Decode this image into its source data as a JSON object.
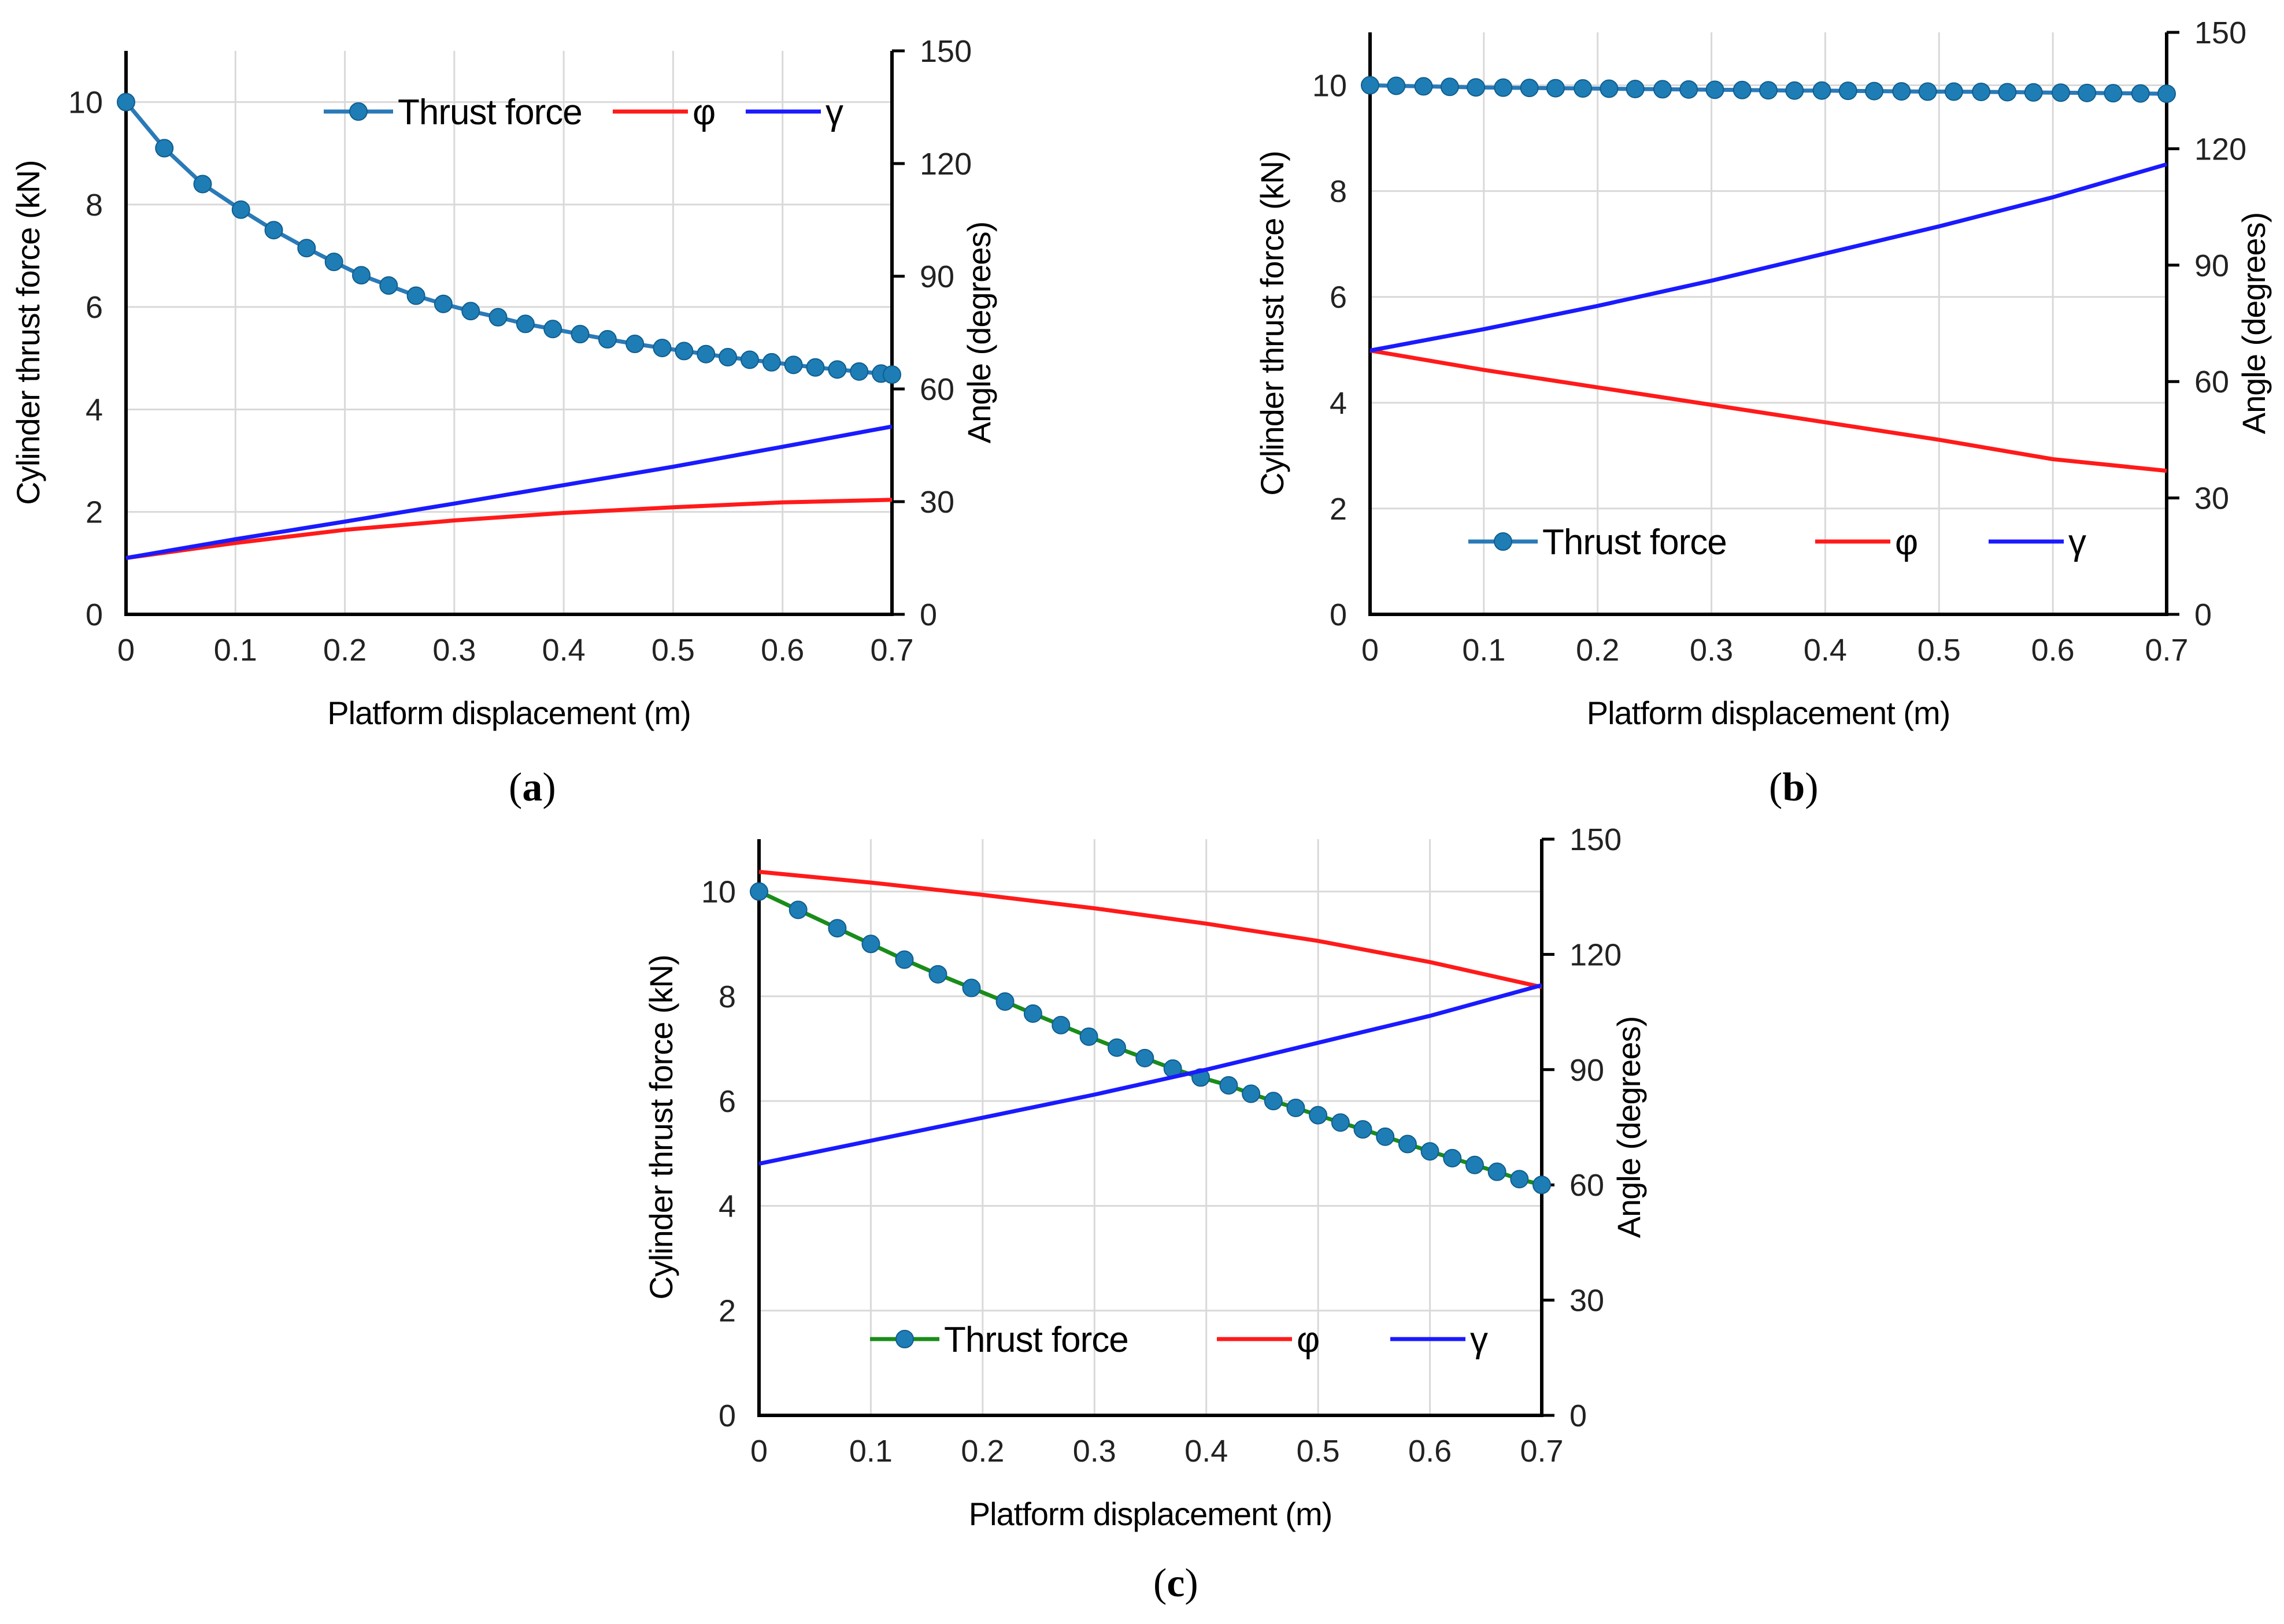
{
  "chart_data": [
    {
      "type": "line",
      "caption_letter": "a",
      "xlabel": "Platform displacement (m)",
      "ylabel": "Cylinder thrust force (kN)",
      "y2label": "Angle (degrees)",
      "xlim": [
        0,
        0.7
      ],
      "ylim": [
        0,
        11
      ],
      "y2lim": [
        0,
        150
      ],
      "x_ticks": [
        "0",
        "0.1",
        "0.2",
        "0.3",
        "0.4",
        "0.5",
        "0.6",
        "0.7"
      ],
      "y_ticks": [
        "0",
        "2",
        "4",
        "6",
        "8",
        "10"
      ],
      "y2_ticks": [
        "0",
        "30",
        "60",
        "90",
        "120",
        "150"
      ],
      "grid": true,
      "legend_position": "top",
      "series": [
        {
          "name": "Thrust force",
          "axis": "left",
          "color": "#2a7ab8",
          "marker": "circle",
          "x": [
            0,
            0.035,
            0.07,
            0.105,
            0.135,
            0.165,
            0.19,
            0.215,
            0.24,
            0.265,
            0.29,
            0.315,
            0.34,
            0.365,
            0.39,
            0.415,
            0.44,
            0.465,
            0.49,
            0.51,
            0.53,
            0.55,
            0.57,
            0.59,
            0.61,
            0.63,
            0.65,
            0.67,
            0.69,
            0.7
          ],
          "values": [
            10,
            9.1,
            8.4,
            7.9,
            7.5,
            7.15,
            6.88,
            6.62,
            6.42,
            6.22,
            6.06,
            5.92,
            5.8,
            5.67,
            5.57,
            5.47,
            5.37,
            5.28,
            5.2,
            5.14,
            5.08,
            5.02,
            4.97,
            4.92,
            4.87,
            4.82,
            4.78,
            4.74,
            4.7,
            4.68
          ]
        },
        {
          "name": "φ",
          "axis": "right",
          "color": "#ff1a1a",
          "marker": "none",
          "x": [
            0,
            0.1,
            0.2,
            0.3,
            0.4,
            0.5,
            0.6,
            0.7
          ],
          "values": [
            15,
            19,
            22.5,
            25,
            27,
            28.5,
            29.8,
            30.5
          ]
        },
        {
          "name": "γ",
          "axis": "right",
          "color": "#1a1aff",
          "marker": "none",
          "x": [
            0,
            0.1,
            0.2,
            0.3,
            0.4,
            0.5,
            0.6,
            0.7
          ],
          "values": [
            15,
            20,
            24.7,
            29.5,
            34.4,
            39.3,
            44.6,
            50
          ]
        }
      ]
    },
    {
      "type": "line",
      "caption_letter": "b",
      "xlabel": "Platform displacement (m)",
      "ylabel": "Cylinder thrust force (kN)",
      "y2label": "Angle (degrees)",
      "xlim": [
        0,
        0.7
      ],
      "ylim": [
        0,
        11
      ],
      "y2lim": [
        0,
        150
      ],
      "x_ticks": [
        "0",
        "0.1",
        "0.2",
        "0.3",
        "0.4",
        "0.5",
        "0.6",
        "0.7"
      ],
      "y_ticks": [
        "0",
        "2",
        "4",
        "6",
        "8",
        "10"
      ],
      "y2_ticks": [
        "0",
        "30",
        "60",
        "90",
        "120",
        "150"
      ],
      "grid": true,
      "legend_position": "bottom",
      "series": [
        {
          "name": "Thrust force",
          "axis": "left",
          "color": "#2a7ab8",
          "marker": "circle",
          "x": [
            0,
            0.023,
            0.047,
            0.07,
            0.093,
            0.117,
            0.14,
            0.163,
            0.187,
            0.21,
            0.233,
            0.257,
            0.28,
            0.303,
            0.327,
            0.35,
            0.373,
            0.397,
            0.42,
            0.443,
            0.467,
            0.49,
            0.513,
            0.537,
            0.56,
            0.583,
            0.607,
            0.63,
            0.653,
            0.677,
            0.7
          ],
          "values": [
            10,
            9.99,
            9.98,
            9.97,
            9.96,
            9.955,
            9.95,
            9.945,
            9.94,
            9.935,
            9.93,
            9.925,
            9.92,
            9.915,
            9.91,
            9.905,
            9.9,
            9.9,
            9.895,
            9.89,
            9.885,
            9.88,
            9.88,
            9.875,
            9.87,
            9.865,
            9.86,
            9.855,
            9.85,
            9.845,
            9.84
          ]
        },
        {
          "name": "φ",
          "axis": "right",
          "color": "#ff1a1a",
          "marker": "none",
          "x": [
            0,
            0.1,
            0.2,
            0.3,
            0.4,
            0.5,
            0.6,
            0.7
          ],
          "values": [
            68,
            63,
            58.5,
            54,
            49.5,
            45,
            40,
            37
          ]
        },
        {
          "name": "γ",
          "axis": "right",
          "color": "#1a1aff",
          "marker": "none",
          "x": [
            0,
            0.1,
            0.2,
            0.3,
            0.4,
            0.5,
            0.6,
            0.7
          ],
          "values": [
            68,
            73.5,
            79.5,
            86,
            93,
            100,
            107.5,
            116
          ]
        }
      ]
    },
    {
      "type": "line",
      "caption_letter": "c",
      "xlabel": "Platform displacement (m)",
      "ylabel": "Cylinder thrust force (kN)",
      "y2label": "Angle (degrees)",
      "xlim": [
        0,
        0.7
      ],
      "ylim": [
        0,
        11
      ],
      "y2lim": [
        0,
        150
      ],
      "x_ticks": [
        "0",
        "0.1",
        "0.2",
        "0.3",
        "0.4",
        "0.5",
        "0.6",
        "0.7"
      ],
      "y_ticks": [
        "0",
        "2",
        "4",
        "6",
        "8",
        "10"
      ],
      "y2_ticks": [
        "0",
        "30",
        "60",
        "90",
        "120",
        "150"
      ],
      "grid": true,
      "legend_position": "bottom",
      "series": [
        {
          "name": "Thrust force",
          "axis": "left",
          "color": "#1a8c1a",
          "marker": "circle",
          "x": [
            0,
            0.035,
            0.07,
            0.1,
            0.13,
            0.16,
            0.19,
            0.22,
            0.245,
            0.27,
            0.295,
            0.32,
            0.345,
            0.37,
            0.395,
            0.42,
            0.44,
            0.46,
            0.48,
            0.5,
            0.52,
            0.54,
            0.56,
            0.58,
            0.6,
            0.62,
            0.64,
            0.66,
            0.68,
            0.7
          ],
          "values": [
            10,
            9.65,
            9.3,
            9.0,
            8.7,
            8.42,
            8.16,
            7.9,
            7.67,
            7.45,
            7.23,
            7.02,
            6.82,
            6.62,
            6.45,
            6.3,
            6.14,
            6.0,
            5.87,
            5.73,
            5.59,
            5.46,
            5.32,
            5.18,
            5.04,
            4.91,
            4.78,
            4.65,
            4.51,
            4.4
          ]
        },
        {
          "name": "φ",
          "axis": "right",
          "color": "#ff1a1a",
          "marker": "none",
          "x": [
            0,
            0.1,
            0.2,
            0.3,
            0.4,
            0.5,
            0.6,
            0.7
          ],
          "values": [
            141.5,
            138.7,
            135.5,
            132,
            128,
            123.5,
            118,
            111.5
          ]
        },
        {
          "name": "γ",
          "axis": "right",
          "color": "#1a1aff",
          "marker": "none",
          "x": [
            0,
            0.1,
            0.2,
            0.3,
            0.4,
            0.5,
            0.6,
            0.7
          ],
          "values": [
            65.5,
            71.5,
            77.5,
            83.5,
            90,
            97,
            104,
            112
          ]
        }
      ]
    }
  ]
}
